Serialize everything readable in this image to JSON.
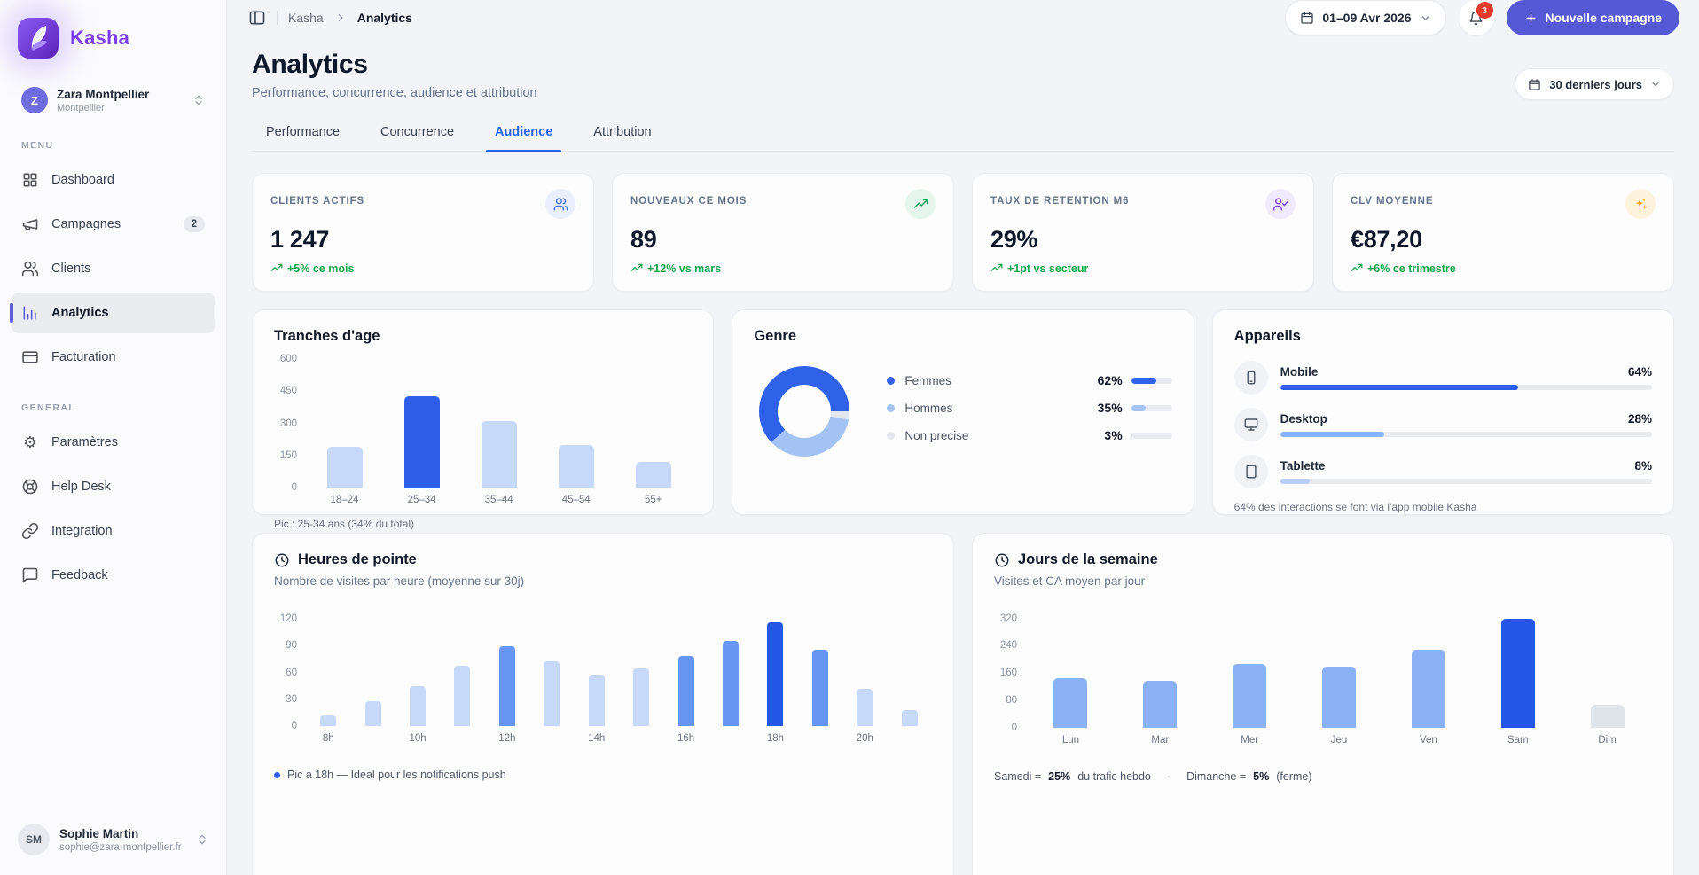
{
  "brand": {
    "name": "Kasha"
  },
  "colors": {
    "primary": "#5659d6",
    "active_tab": "#2563eb",
    "positive": "#16a34a",
    "notification": "#e5382c"
  },
  "sidebar": {
    "workspace": {
      "initial": "Z",
      "name": "Zara Montpellier",
      "location": "Montpellier"
    },
    "menu_label": "MENU",
    "menu": [
      {
        "label": "Dashboard",
        "icon": "grid-icon"
      },
      {
        "label": "Campagnes",
        "icon": "megaphone-icon",
        "badge": "2"
      },
      {
        "label": "Clients",
        "icon": "users-icon"
      },
      {
        "label": "Analytics",
        "icon": "bar-chart-icon",
        "active": true
      },
      {
        "label": "Facturation",
        "icon": "credit-card-icon"
      }
    ],
    "general_label": "GENERAL",
    "general": [
      {
        "label": "Paramètres",
        "icon": "gear-icon",
        "glyph": "⚙"
      },
      {
        "label": "Help Desk",
        "icon": "lifebuoy-icon"
      },
      {
        "label": "Integration",
        "icon": "link-icon"
      },
      {
        "label": "Feedback",
        "icon": "chat-icon"
      }
    ],
    "user": {
      "initials": "SM",
      "name": "Sophie Martin",
      "email": "sophie@zara-montpellier.fr"
    }
  },
  "topbar": {
    "breadcrumb_root": "Kasha",
    "breadcrumb_current": "Analytics",
    "date_range": "01–09 Avr 2026",
    "notification_count": "3",
    "cta_label": "Nouvelle campagne"
  },
  "header": {
    "title": "Analytics",
    "subtitle": "Performance, concurrence, audience et attribution",
    "period_label": "30 derniers jours"
  },
  "tabs": [
    {
      "label": "Performance"
    },
    {
      "label": "Concurrence"
    },
    {
      "label": "Audience",
      "active": true
    },
    {
      "label": "Attribution"
    }
  ],
  "kpis": [
    {
      "label": "CLIENTS ACTIFS",
      "value": "1 247",
      "trend": "+5% ce mois",
      "icon": "users-icon"
    },
    {
      "label": "NOUVEAUX CE MOIS",
      "value": "89",
      "trend": "+12% vs mars",
      "icon": "trending-up-icon"
    },
    {
      "label": "TAUX DE RETENTION M6",
      "value": "29%",
      "trend": "+1pt vs secteur",
      "icon": "user-check-icon"
    },
    {
      "label": "CLV MOYENNE",
      "value": "€87,20",
      "trend": "+6% ce trimestre",
      "icon": "sparkles-icon"
    }
  ],
  "chart_data": {
    "age": {
      "type": "bar",
      "title": "Tranches d'age",
      "categories": [
        "18–24",
        "25–34",
        "35–44",
        "45–54",
        "55+"
      ],
      "values": [
        190,
        425,
        310,
        200,
        122
      ],
      "yticks": [
        0,
        150,
        300,
        450,
        600
      ],
      "ylim": [
        0,
        600
      ],
      "highlight_index": 1,
      "colors": {
        "default": "#c7d9fa",
        "highlight": "#2f5fe8"
      },
      "footnote": "Pic : 25-34 ans (34% du total)"
    },
    "genre": {
      "type": "pie",
      "title": "Genre",
      "slices": [
        {
          "label": "Femmes",
          "value": 62,
          "pct": "62%",
          "color": "#2f62e8"
        },
        {
          "label": "Hommes",
          "value": 35,
          "pct": "35%",
          "color": "#a4c3f5"
        },
        {
          "label": "Non precise",
          "value": 3,
          "pct": "3%",
          "color": "#e2e7ee"
        }
      ]
    },
    "devices": {
      "type": "bar",
      "title": "Appareils",
      "rows": [
        {
          "label": "Mobile",
          "value": 64,
          "pct": "64%",
          "color": "#2d5ce6",
          "icon": "smartphone-icon"
        },
        {
          "label": "Desktop",
          "value": 28,
          "pct": "28%",
          "color": "#8ab3f7",
          "icon": "monitor-icon"
        },
        {
          "label": "Tablette",
          "value": 8,
          "pct": "8%",
          "color": "#b7cefb",
          "icon": "tablet-icon"
        }
      ],
      "footnote": "64% des interactions se font via l'app mobile Kasha"
    },
    "hours": {
      "type": "bar",
      "title": "Heures de pointe",
      "subtitle": "Nombre de visites par heure (moyenne sur 30j)",
      "x": [
        "8h",
        "9h",
        "10h",
        "11h",
        "12h",
        "13h",
        "14h",
        "15h",
        "16h",
        "17h",
        "18h",
        "19h",
        "20h",
        "21h"
      ],
      "values": [
        12,
        28,
        45,
        67,
        89,
        72,
        58,
        64,
        78,
        95,
        116,
        85,
        42,
        18
      ],
      "tones": [
        "light",
        "light",
        "light",
        "light",
        "mid",
        "light",
        "light",
        "light",
        "mid",
        "mid",
        "peak",
        "mid",
        "light",
        "light"
      ],
      "yticks": [
        0,
        30,
        60,
        90,
        120
      ],
      "ylim": [
        0,
        125
      ],
      "colors": {
        "light": "#c7d9fa",
        "mid": "#6695f2",
        "peak": "#2457e6"
      },
      "label_every": 2,
      "footnote": "Pic a 18h — Ideal pour les notifications push"
    },
    "weekdays": {
      "type": "bar",
      "title": "Jours de la semaine",
      "subtitle": "Visites et CA moyen par jour",
      "categories": [
        "Lun",
        "Mar",
        "Mer",
        "Jeu",
        "Ven",
        "Sam",
        "Dim"
      ],
      "values": [
        145,
        138,
        188,
        180,
        227,
        318,
        68
      ],
      "tones": [
        "mid",
        "mid",
        "mid",
        "mid",
        "mid",
        "peak",
        "muted"
      ],
      "yticks": [
        0,
        80,
        160,
        240,
        320
      ],
      "ylim": [
        0,
        332
      ],
      "colors": {
        "mid": "#8ab1f5",
        "peak": "#2457e6",
        "muted": "#dfe3ea"
      },
      "footnote": {
        "part1": "Samedi = ",
        "bold1": "25%",
        "part2": " du trafic hebdo",
        "sep": "·",
        "part3": "Dimanche = ",
        "bold2": "5%",
        "part4": " (ferme)"
      }
    }
  }
}
